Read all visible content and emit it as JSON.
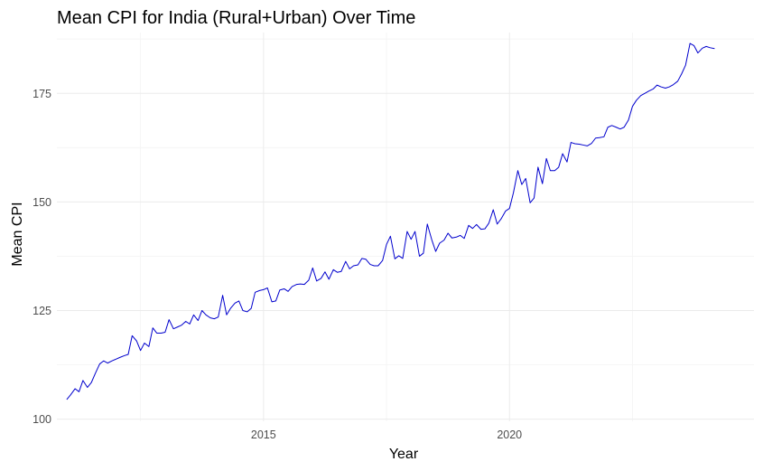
{
  "chart_data": {
    "type": "line",
    "title": "Mean CPI for India (Rural+Urban) Over Time",
    "xlabel": "Year",
    "ylabel": "Mean CPI",
    "x_ticks": [
      2015,
      2020
    ],
    "y_ticks": [
      100,
      125,
      150,
      175
    ],
    "xlim": [
      2010.8,
      2024.97
    ],
    "ylim": [
      99.5,
      189.0
    ],
    "grid": true,
    "legend": "none",
    "colors": {
      "line": "#0000cd",
      "grid_major": "#ebebeb",
      "grid_minor": "#f4f4f4"
    },
    "series": [
      {
        "points": [
          [
            2011.0,
            104.5
          ],
          [
            2011.08,
            105.6
          ],
          [
            2011.17,
            107.0
          ],
          [
            2011.25,
            106.3
          ],
          [
            2011.33,
            108.9
          ],
          [
            2011.42,
            107.3
          ],
          [
            2011.5,
            108.4
          ],
          [
            2011.58,
            110.5
          ],
          [
            2011.67,
            112.7
          ],
          [
            2011.75,
            113.4
          ],
          [
            2011.83,
            112.9
          ],
          [
            2011.92,
            113.4
          ],
          [
            2012.0,
            113.8
          ],
          [
            2012.08,
            114.2
          ],
          [
            2012.17,
            114.6
          ],
          [
            2012.25,
            114.9
          ],
          [
            2012.33,
            119.2
          ],
          [
            2012.42,
            118.0
          ],
          [
            2012.5,
            115.8
          ],
          [
            2012.58,
            117.5
          ],
          [
            2012.67,
            116.7
          ],
          [
            2012.75,
            121.0
          ],
          [
            2012.83,
            119.8
          ],
          [
            2012.92,
            119.8
          ],
          [
            2013.0,
            120.0
          ],
          [
            2013.08,
            122.9
          ],
          [
            2013.17,
            120.8
          ],
          [
            2013.25,
            121.2
          ],
          [
            2013.33,
            121.6
          ],
          [
            2013.42,
            122.5
          ],
          [
            2013.5,
            121.9
          ],
          [
            2013.58,
            124.0
          ],
          [
            2013.67,
            122.7
          ],
          [
            2013.75,
            125.0
          ],
          [
            2013.83,
            124.0
          ],
          [
            2013.92,
            123.3
          ],
          [
            2014.0,
            123.1
          ],
          [
            2014.08,
            123.5
          ],
          [
            2014.17,
            128.5
          ],
          [
            2014.25,
            124.0
          ],
          [
            2014.33,
            125.5
          ],
          [
            2014.42,
            126.7
          ],
          [
            2014.5,
            127.2
          ],
          [
            2014.58,
            125.0
          ],
          [
            2014.67,
            124.7
          ],
          [
            2014.75,
            125.5
          ],
          [
            2014.83,
            129.2
          ],
          [
            2014.92,
            129.6
          ],
          [
            2015.0,
            129.8
          ],
          [
            2015.08,
            130.2
          ],
          [
            2015.17,
            127.0
          ],
          [
            2015.25,
            127.2
          ],
          [
            2015.33,
            129.7
          ],
          [
            2015.42,
            130.0
          ],
          [
            2015.5,
            129.4
          ],
          [
            2015.58,
            130.5
          ],
          [
            2015.67,
            131.0
          ],
          [
            2015.75,
            131.1
          ],
          [
            2015.83,
            131.0
          ],
          [
            2015.92,
            132.0
          ],
          [
            2016.0,
            134.8
          ],
          [
            2016.08,
            131.8
          ],
          [
            2016.17,
            132.4
          ],
          [
            2016.25,
            133.9
          ],
          [
            2016.33,
            132.2
          ],
          [
            2016.42,
            134.4
          ],
          [
            2016.5,
            133.8
          ],
          [
            2016.58,
            134.0
          ],
          [
            2016.67,
            136.3
          ],
          [
            2016.75,
            134.6
          ],
          [
            2016.83,
            135.3
          ],
          [
            2016.92,
            135.5
          ],
          [
            2017.0,
            137.0
          ],
          [
            2017.08,
            136.8
          ],
          [
            2017.17,
            135.6
          ],
          [
            2017.25,
            135.3
          ],
          [
            2017.33,
            135.3
          ],
          [
            2017.42,
            136.5
          ],
          [
            2017.5,
            140.2
          ],
          [
            2017.58,
            142.1
          ],
          [
            2017.67,
            136.9
          ],
          [
            2017.75,
            137.6
          ],
          [
            2017.83,
            137.0
          ],
          [
            2017.92,
            143.2
          ],
          [
            2018.0,
            141.4
          ],
          [
            2018.08,
            143.2
          ],
          [
            2018.17,
            137.5
          ],
          [
            2018.25,
            138.2
          ],
          [
            2018.33,
            144.9
          ],
          [
            2018.42,
            141.3
          ],
          [
            2018.5,
            138.6
          ],
          [
            2018.58,
            140.5
          ],
          [
            2018.67,
            141.2
          ],
          [
            2018.75,
            142.8
          ],
          [
            2018.83,
            141.7
          ],
          [
            2018.92,
            141.9
          ],
          [
            2019.0,
            142.3
          ],
          [
            2019.08,
            141.6
          ],
          [
            2019.17,
            144.6
          ],
          [
            2019.25,
            143.9
          ],
          [
            2019.33,
            144.8
          ],
          [
            2019.42,
            143.7
          ],
          [
            2019.5,
            143.8
          ],
          [
            2019.58,
            145.1
          ],
          [
            2019.67,
            148.2
          ],
          [
            2019.75,
            144.9
          ],
          [
            2019.83,
            146.1
          ],
          [
            2019.92,
            147.9
          ],
          [
            2020.0,
            148.5
          ],
          [
            2020.08,
            152.1
          ],
          [
            2020.17,
            157.2
          ],
          [
            2020.25,
            154.0
          ],
          [
            2020.33,
            155.4
          ],
          [
            2020.42,
            149.8
          ],
          [
            2020.5,
            150.9
          ],
          [
            2020.58,
            158.0
          ],
          [
            2020.67,
            154.2
          ],
          [
            2020.75,
            160.0
          ],
          [
            2020.83,
            157.2
          ],
          [
            2020.92,
            157.2
          ],
          [
            2021.0,
            158.0
          ],
          [
            2021.08,
            161.1
          ],
          [
            2021.17,
            159.2
          ],
          [
            2021.25,
            163.7
          ],
          [
            2021.33,
            163.4
          ],
          [
            2021.42,
            163.3
          ],
          [
            2021.5,
            163.1
          ],
          [
            2021.58,
            162.9
          ],
          [
            2021.67,
            163.5
          ],
          [
            2021.75,
            164.7
          ],
          [
            2021.83,
            164.8
          ],
          [
            2021.92,
            165.0
          ],
          [
            2022.0,
            167.2
          ],
          [
            2022.08,
            167.6
          ],
          [
            2022.17,
            167.2
          ],
          [
            2022.25,
            166.8
          ],
          [
            2022.33,
            167.2
          ],
          [
            2022.42,
            168.9
          ],
          [
            2022.5,
            172.0
          ],
          [
            2022.58,
            173.4
          ],
          [
            2022.67,
            174.5
          ],
          [
            2022.75,
            175.0
          ],
          [
            2022.83,
            175.5
          ],
          [
            2022.92,
            176.0
          ],
          [
            2023.0,
            176.9
          ],
          [
            2023.08,
            176.5
          ],
          [
            2023.17,
            176.2
          ],
          [
            2023.25,
            176.5
          ],
          [
            2023.33,
            177.0
          ],
          [
            2023.42,
            177.8
          ],
          [
            2023.5,
            179.5
          ],
          [
            2023.58,
            181.5
          ],
          [
            2023.67,
            186.5
          ],
          [
            2023.75,
            186.0
          ],
          [
            2023.83,
            184.3
          ],
          [
            2023.92,
            185.4
          ],
          [
            2024.0,
            185.8
          ],
          [
            2024.08,
            185.5
          ],
          [
            2024.17,
            185.3
          ]
        ]
      }
    ]
  }
}
